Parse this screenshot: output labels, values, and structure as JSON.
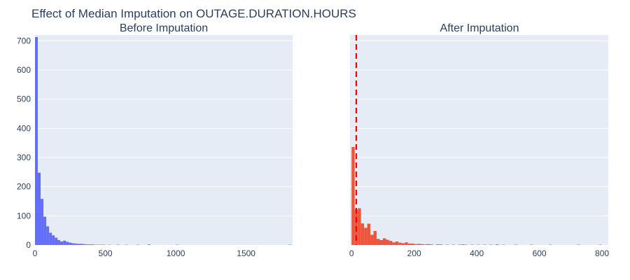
{
  "title": "Effect of Median Imputation on OUTAGE.DURATION.HOURS",
  "colors": {
    "plot_bg": "#E5ECF6",
    "grid": "#ffffff",
    "text": "#2a3f5f",
    "before": "#636EFA",
    "after": "#EF553B",
    "median_line": "#FF0000"
  },
  "chart_data": [
    {
      "type": "bar",
      "subtitle": "Before Imputation",
      "x_range": [
        0,
        1830
      ],
      "y_range": [
        0,
        720
      ],
      "bin_width": 20,
      "x_ticks": [
        0,
        500,
        1000,
        1500
      ],
      "y_ticks": [
        0,
        100,
        200,
        300,
        400,
        500,
        600,
        700
      ],
      "y_tick_labels": [
        "0",
        "100",
        "200",
        "300",
        "400",
        "500",
        "600",
        "700"
      ],
      "x_tick_labels": [
        "0",
        "500",
        "1000",
        "1500"
      ],
      "grid": true,
      "bars": [
        {
          "x": 10,
          "y": 713
        },
        {
          "x": 30,
          "y": 248
        },
        {
          "x": 50,
          "y": 158
        },
        {
          "x": 70,
          "y": 97
        },
        {
          "x": 90,
          "y": 64
        },
        {
          "x": 110,
          "y": 42
        },
        {
          "x": 130,
          "y": 33
        },
        {
          "x": 150,
          "y": 25
        },
        {
          "x": 170,
          "y": 17
        },
        {
          "x": 190,
          "y": 12
        },
        {
          "x": 210,
          "y": 15
        },
        {
          "x": 230,
          "y": 11
        },
        {
          "x": 250,
          "y": 8
        },
        {
          "x": 270,
          "y": 6
        },
        {
          "x": 290,
          "y": 5
        },
        {
          "x": 310,
          "y": 4
        },
        {
          "x": 330,
          "y": 4
        },
        {
          "x": 350,
          "y": 3
        },
        {
          "x": 370,
          "y": 2
        },
        {
          "x": 390,
          "y": 2
        },
        {
          "x": 410,
          "y": 2
        },
        {
          "x": 430,
          "y": 1
        },
        {
          "x": 450,
          "y": 1
        },
        {
          "x": 470,
          "y": 1
        },
        {
          "x": 490,
          "y": 1
        },
        {
          "x": 530,
          "y": 1
        },
        {
          "x": 590,
          "y": 1
        },
        {
          "x": 650,
          "y": 1
        },
        {
          "x": 730,
          "y": 1
        },
        {
          "x": 810,
          "y": 2
        },
        {
          "x": 1010,
          "y": 1
        },
        {
          "x": 1810,
          "y": 1
        }
      ]
    },
    {
      "type": "bar",
      "subtitle": "After Imputation",
      "x_range": [
        -5,
        820
      ],
      "y_range": [
        0,
        720
      ],
      "bin_width": 10,
      "x_ticks": [
        0,
        200,
        400,
        600,
        800
      ],
      "x_tick_labels": [
        "0",
        "200",
        "400",
        "600",
        "800"
      ],
      "y_ticks": [
        0,
        100,
        200,
        300,
        400,
        500,
        600,
        700
      ],
      "median": 15,
      "grid": true,
      "bars": [
        {
          "x": 5,
          "y": 336
        },
        {
          "x": 15,
          "y": 122
        },
        {
          "x": 25,
          "y": 126
        },
        {
          "x": 35,
          "y": 74
        },
        {
          "x": 45,
          "y": 59
        },
        {
          "x": 55,
          "y": 73
        },
        {
          "x": 65,
          "y": 35
        },
        {
          "x": 75,
          "y": 48
        },
        {
          "x": 85,
          "y": 21
        },
        {
          "x": 95,
          "y": 17
        },
        {
          "x": 105,
          "y": 23
        },
        {
          "x": 115,
          "y": 18
        },
        {
          "x": 125,
          "y": 14
        },
        {
          "x": 135,
          "y": 9
        },
        {
          "x": 145,
          "y": 12
        },
        {
          "x": 155,
          "y": 8
        },
        {
          "x": 165,
          "y": 6
        },
        {
          "x": 175,
          "y": 9
        },
        {
          "x": 185,
          "y": 5
        },
        {
          "x": 195,
          "y": 5
        },
        {
          "x": 205,
          "y": 3
        },
        {
          "x": 215,
          "y": 4
        },
        {
          "x": 225,
          "y": 3
        },
        {
          "x": 235,
          "y": 2
        },
        {
          "x": 245,
          "y": 3
        },
        {
          "x": 255,
          "y": 2
        },
        {
          "x": 275,
          "y": 2
        },
        {
          "x": 285,
          "y": 2
        },
        {
          "x": 305,
          "y": 1
        },
        {
          "x": 325,
          "y": 1
        },
        {
          "x": 345,
          "y": 1
        },
        {
          "x": 355,
          "y": 2
        },
        {
          "x": 365,
          "y": 1
        },
        {
          "x": 385,
          "y": 1
        },
        {
          "x": 405,
          "y": 1
        },
        {
          "x": 425,
          "y": 1
        },
        {
          "x": 445,
          "y": 1
        },
        {
          "x": 465,
          "y": 2
        },
        {
          "x": 485,
          "y": 1
        },
        {
          "x": 525,
          "y": 1
        },
        {
          "x": 575,
          "y": 1
        },
        {
          "x": 635,
          "y": 1
        },
        {
          "x": 725,
          "y": 1
        },
        {
          "x": 795,
          "y": 1
        }
      ]
    }
  ]
}
